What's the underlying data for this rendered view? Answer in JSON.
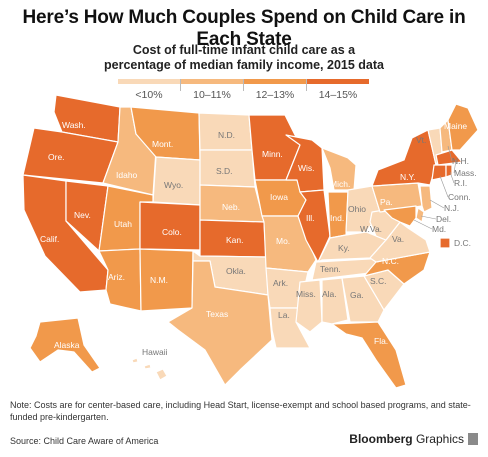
{
  "title": "Here’s How Much Couples Spend on Child Care in Each State",
  "subtitle_line1": "Cost of full-time infant child care as a",
  "subtitle_line2": "percentage of median family income, 2015 data",
  "legend": [
    {
      "label": "<10%",
      "color": "#f9d9b8"
    },
    {
      "label": "10–11%",
      "color": "#f6b97e"
    },
    {
      "label": "12–13%",
      "color": "#f1994b"
    },
    {
      "label": "14–15%",
      "color": "#e66a2c"
    }
  ],
  "colors": {
    "c1": "#f9d9b8",
    "c2": "#f6b97e",
    "c3": "#f1994b",
    "c4": "#e66a2c",
    "border": "#ffffff"
  },
  "state_labels": {
    "wash": "Wash.",
    "ore": "Ore.",
    "calif": "Calif.",
    "nev": "Nev.",
    "idaho": "Idaho",
    "mont": "Mont.",
    "wyo": "Wyo.",
    "utah": "Utah",
    "ariz": "Ariz.",
    "colo": "Colo.",
    "nm": "N.M.",
    "nd": "N.D.",
    "sd": "S.D.",
    "neb": "Neb.",
    "kan": "Kan.",
    "okla": "Okla.",
    "texas": "Texas",
    "minn": "Minn.",
    "iowa": "Iowa",
    "mo": "Mo.",
    "ark": "Ark.",
    "la": "La.",
    "wis": "Wis.",
    "ill": "Ill.",
    "mich": "Mich.",
    "ind": "Ind.",
    "ohio": "Ohio",
    "ky": "Ky.",
    "tenn": "Tenn.",
    "miss": "Miss.",
    "ala": "Ala.",
    "ga": "Ga.",
    "fla": "Fla.",
    "sc": "S.C.",
    "nc": "N.C.",
    "va": "Va.",
    "wva": "W.Va.",
    "pa": "Pa.",
    "ny": "N.Y.",
    "vt": "Vt.",
    "maine": "Maine",
    "nh": "N.H.",
    "mass": "Mass.",
    "ri": "R.I.",
    "conn": "Conn.",
    "nj": "N.J.",
    "del": "Del.",
    "md": "Md.",
    "dc": "D.C.",
    "alaska": "Alaska",
    "hawaii": "Hawaii"
  },
  "note": "Note: Costs are for center-based care, including Head Start, license-exempt and school based programs, and state-funded pre-kindergarten.",
  "source": "Source: Child Care Aware of America",
  "brand_bold": "Bloomberg",
  "brand_rest": " Graphics"
}
